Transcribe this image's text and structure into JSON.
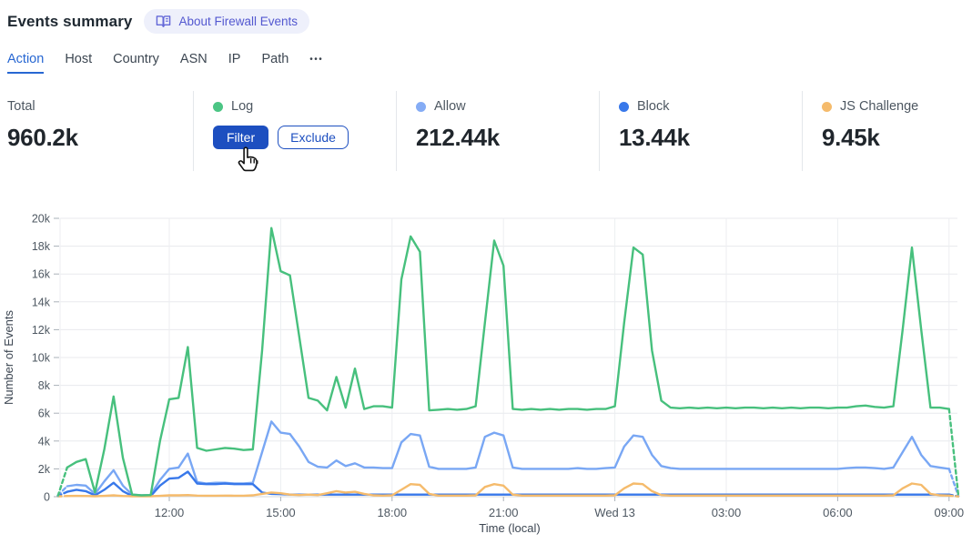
{
  "header": {
    "title": "Events summary",
    "about_label": "About Firewall Events"
  },
  "tabs": {
    "items": [
      "Action",
      "Host",
      "Country",
      "ASN",
      "IP",
      "Path"
    ],
    "active": "Action",
    "overflow_label": "•••"
  },
  "stats": {
    "total": {
      "label": "Total",
      "value": "960.2k"
    },
    "cards": [
      {
        "label": "Log",
        "dot_color": "#4bc584",
        "hovered": true,
        "filter_label": "Filter",
        "exclude_label": "Exclude"
      },
      {
        "label": "Allow",
        "dot_color": "#85acf5",
        "value": "212.44k"
      },
      {
        "label": "Block",
        "dot_color": "#3878ea",
        "value": "13.44k"
      },
      {
        "label": "JS Challenge",
        "dot_color": "#f5bb6c",
        "value": "9.45k"
      }
    ]
  },
  "colors": {
    "accent_button_blue": "#1d4fc0",
    "tab_active_blue": "#2767d2",
    "pill_bg": "#eef0fb",
    "pill_text": "#5358d0",
    "grid_line": "#e8eaed",
    "baseline": "#d5dade",
    "tick_text": "#4e5862"
  },
  "chart_data": {
    "type": "line",
    "title": "",
    "xlabel": "Time (local)",
    "ylabel": "Number of Events",
    "units": "thousands of events",
    "ylim_k": [
      0,
      20
    ],
    "y_ticks": [
      "0",
      "2k",
      "4k",
      "6k",
      "8k",
      "10k",
      "12k",
      "14k",
      "16k",
      "18k",
      "20k"
    ],
    "x_ticks": [
      {
        "hour": 12,
        "label": "12:00"
      },
      {
        "hour": 15,
        "label": "15:00"
      },
      {
        "hour": 18,
        "label": "18:00"
      },
      {
        "hour": 21,
        "label": "21:00"
      },
      {
        "hour": 24,
        "label": "Wed 13"
      },
      {
        "hour": 27,
        "label": "03:00"
      },
      {
        "hour": 30,
        "label": "06:00"
      },
      {
        "hour": 33,
        "label": "09:00"
      }
    ],
    "start_hour": 9,
    "interval_minutes": 15,
    "dashed_first_and_last_segment": true,
    "grid": true,
    "legend_position": "stat-cards-above",
    "series": [
      {
        "name": "Allow",
        "color": "#79a7f4",
        "values_k": [
          0.1,
          0.75,
          0.85,
          0.8,
          0.2,
          1.1,
          1.9,
          0.8,
          0.15,
          0.1,
          0.12,
          1.2,
          2.0,
          2.1,
          3.1,
          1.05,
          0.95,
          1.0,
          1.0,
          0.95,
          0.95,
          1.0,
          3.2,
          5.4,
          4.6,
          4.5,
          3.6,
          2.5,
          2.15,
          2.1,
          2.6,
          2.2,
          2.4,
          2.1,
          2.1,
          2.05,
          2.05,
          3.9,
          4.5,
          4.4,
          2.15,
          2.0,
          2.0,
          2.0,
          2.0,
          2.1,
          4.3,
          4.6,
          4.4,
          2.1,
          2.0,
          2.0,
          2.0,
          2.0,
          2.0,
          2.0,
          2.05,
          2.0,
          2.0,
          2.05,
          2.1,
          3.6,
          4.4,
          4.3,
          3.0,
          2.2,
          2.05,
          2.0,
          2.0,
          2.0,
          2.0,
          2.0,
          2.0,
          2.0,
          2.0,
          2.0,
          2.0,
          2.0,
          2.0,
          2.0,
          2.0,
          2.0,
          2.0,
          2.0,
          2.0,
          2.05,
          2.1,
          2.1,
          2.05,
          2.0,
          2.1,
          3.2,
          4.3,
          3.0,
          2.2,
          2.1,
          2.0,
          0.05
        ]
      },
      {
        "name": "Block",
        "color": "#3878ea",
        "values_k": [
          0.05,
          0.35,
          0.5,
          0.4,
          0.1,
          0.5,
          1.0,
          0.4,
          0.05,
          0.05,
          0.05,
          0.8,
          1.3,
          1.35,
          1.8,
          0.95,
          0.9,
          0.9,
          0.95,
          0.9,
          0.9,
          0.9,
          0.3,
          0.2,
          0.18,
          0.15,
          0.15,
          0.15,
          0.15,
          0.15,
          0.15,
          0.15,
          0.15,
          0.15,
          0.15,
          0.15,
          0.15,
          0.15,
          0.15,
          0.15,
          0.15,
          0.15,
          0.15,
          0.15,
          0.15,
          0.15,
          0.15,
          0.15,
          0.15,
          0.15,
          0.15,
          0.15,
          0.15,
          0.15,
          0.15,
          0.15,
          0.15,
          0.15,
          0.15,
          0.15,
          0.15,
          0.15,
          0.15,
          0.15,
          0.15,
          0.15,
          0.15,
          0.15,
          0.15,
          0.15,
          0.15,
          0.15,
          0.15,
          0.15,
          0.15,
          0.15,
          0.15,
          0.15,
          0.15,
          0.15,
          0.15,
          0.15,
          0.15,
          0.15,
          0.15,
          0.15,
          0.15,
          0.15,
          0.15,
          0.15,
          0.15,
          0.15,
          0.15,
          0.15,
          0.15,
          0.15,
          0.15,
          0.02
        ]
      },
      {
        "name": "JS Challenge",
        "color": "#f5bb6c",
        "values_k": [
          0.02,
          0.05,
          0.06,
          0.05,
          0.03,
          0.06,
          0.1,
          0.05,
          0.03,
          0.03,
          0.03,
          0.06,
          0.1,
          0.1,
          0.12,
          0.08,
          0.07,
          0.07,
          0.08,
          0.07,
          0.07,
          0.1,
          0.2,
          0.3,
          0.25,
          0.15,
          0.12,
          0.15,
          0.12,
          0.25,
          0.4,
          0.3,
          0.35,
          0.2,
          0.1,
          0.08,
          0.1,
          0.5,
          0.9,
          0.85,
          0.2,
          0.08,
          0.08,
          0.08,
          0.08,
          0.1,
          0.7,
          0.9,
          0.8,
          0.15,
          0.08,
          0.08,
          0.08,
          0.08,
          0.08,
          0.08,
          0.08,
          0.08,
          0.08,
          0.08,
          0.1,
          0.6,
          0.95,
          0.9,
          0.4,
          0.12,
          0.08,
          0.08,
          0.08,
          0.08,
          0.08,
          0.08,
          0.08,
          0.08,
          0.08,
          0.08,
          0.08,
          0.08,
          0.08,
          0.08,
          0.08,
          0.08,
          0.08,
          0.08,
          0.08,
          0.08,
          0.08,
          0.08,
          0.08,
          0.08,
          0.1,
          0.6,
          0.95,
          0.85,
          0.2,
          0.1,
          0.08,
          0.02
        ]
      },
      {
        "name": "Log",
        "color": "#47c07d",
        "values_k": [
          0.05,
          2.1,
          2.5,
          2.7,
          0.3,
          3.4,
          7.2,
          2.8,
          0.15,
          0.1,
          0.12,
          4.0,
          7.0,
          7.1,
          10.75,
          3.5,
          3.3,
          3.4,
          3.5,
          3.45,
          3.35,
          3.4,
          10.5,
          19.3,
          16.2,
          15.9,
          11.5,
          7.1,
          6.9,
          6.2,
          8.6,
          6.4,
          9.2,
          6.3,
          6.5,
          6.5,
          6.4,
          15.6,
          18.7,
          17.6,
          6.2,
          6.25,
          6.3,
          6.25,
          6.3,
          6.5,
          12.5,
          18.4,
          16.6,
          6.3,
          6.25,
          6.3,
          6.25,
          6.3,
          6.25,
          6.3,
          6.3,
          6.25,
          6.3,
          6.3,
          6.5,
          12.5,
          17.9,
          17.4,
          10.5,
          6.9,
          6.4,
          6.35,
          6.4,
          6.35,
          6.4,
          6.35,
          6.4,
          6.35,
          6.4,
          6.4,
          6.35,
          6.4,
          6.35,
          6.4,
          6.35,
          6.4,
          6.4,
          6.35,
          6.4,
          6.4,
          6.5,
          6.55,
          6.45,
          6.4,
          6.5,
          12.0,
          17.9,
          12.0,
          6.4,
          6.4,
          6.3,
          0.1
        ]
      }
    ]
  }
}
